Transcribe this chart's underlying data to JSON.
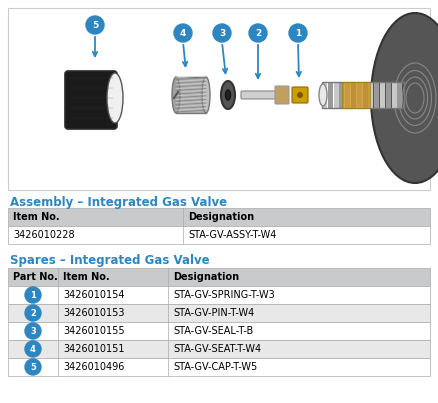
{
  "title_assembly": "Assembly – Integrated Gas Valve",
  "title_spares": "Spares – Integrated Gas Valve",
  "assembly_headers": [
    "Item No.",
    "Designation"
  ],
  "assembly_row": [
    "3426010228",
    "STA-GV-ASSY-T-W4"
  ],
  "spares_headers": [
    "Part No.",
    "Item No.",
    "Designation"
  ],
  "spares_rows": [
    [
      "1",
      "3426010154",
      "STA-GV-SPRING-T-W3"
    ],
    [
      "2",
      "3426010153",
      "STA-GV-PIN-T-W4"
    ],
    [
      "3",
      "3426010155",
      "STA-GV-SEAL-T-B"
    ],
    [
      "4",
      "3426010151",
      "STA-GV-SEAT-T-W4"
    ],
    [
      "5",
      "3426010496",
      "STA-GV-CAP-T-W5"
    ]
  ],
  "blue_color": "#2E86C1",
  "header_bg": "#C8CACC",
  "row_bg_alt": "#E8E8E8",
  "row_bg_white": "#FFFFFF",
  "border_color": "#AAAAAA",
  "img_box_bg": "#FFFFFF",
  "background_color": "#FFFFFF",
  "img_border": "#CCCCCC"
}
